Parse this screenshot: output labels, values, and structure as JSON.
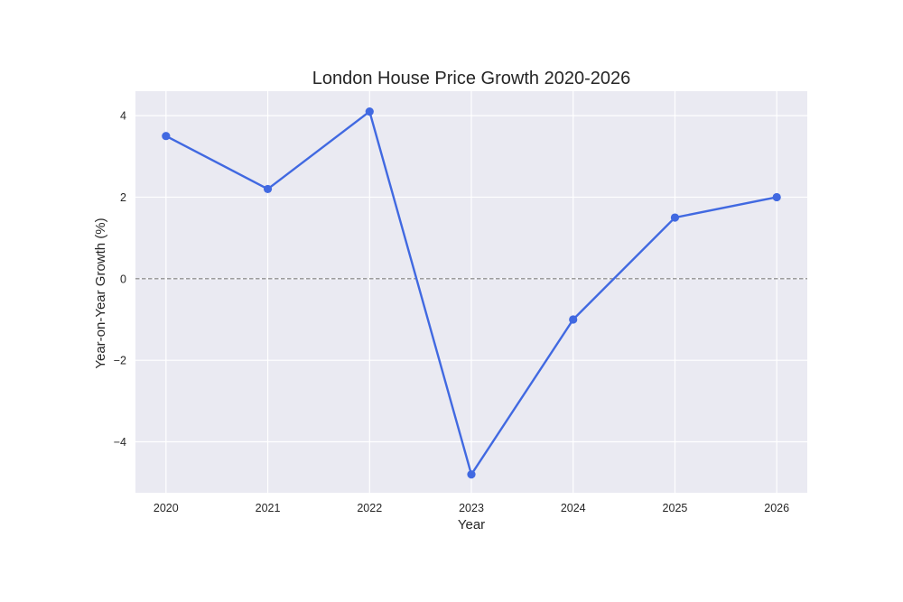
{
  "chart_data": {
    "type": "line",
    "title": "London House Price Growth 2020-2026",
    "xlabel": "Year",
    "ylabel": "Year-on-Year Growth (%)",
    "x": [
      2020,
      2021,
      2022,
      2023,
      2024,
      2025,
      2026
    ],
    "x_tick_labels": [
      "2020",
      "2021",
      "2022",
      "2023",
      "2024",
      "2025",
      "2026"
    ],
    "y_ticks": [
      4,
      2,
      0,
      -2,
      -4
    ],
    "y_tick_labels": [
      "4",
      "2",
      "0",
      "−2",
      "−4"
    ],
    "xlim": [
      2019.7,
      2026.3
    ],
    "ylim": [
      -5.25,
      4.6
    ],
    "grid": true,
    "reference_line": {
      "y": 0,
      "style": "dashed",
      "color": "#808080"
    },
    "series": [
      {
        "values": [
          3.5,
          2.2,
          4.1,
          -4.8,
          -1.0,
          1.5,
          2.0
        ],
        "color": "#4169e1",
        "marker": "circle"
      }
    ],
    "background_color": "#eaeaf2",
    "grid_color": "#ffffff"
  }
}
